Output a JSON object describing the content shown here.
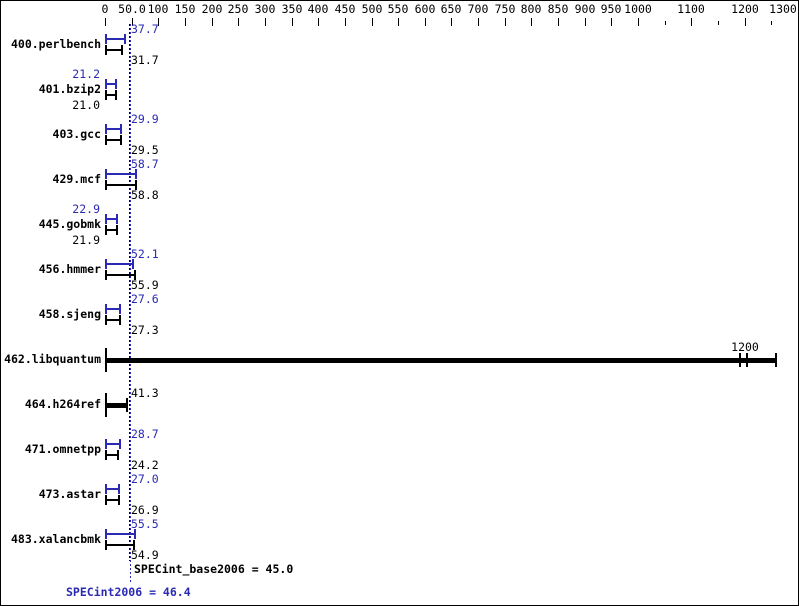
{
  "window": {
    "background": "#ffffff",
    "border_color": "#000000"
  },
  "chart_data": {
    "type": "bar",
    "orientation": "horizontal",
    "title": "",
    "xlabel": "",
    "ylabel": "",
    "grid": false,
    "series": [
      {
        "name": "peak (SPECint2006)",
        "color": "#2a2ab4"
      },
      {
        "name": "base (SPECint_base2006)",
        "color": "#000000"
      }
    ],
    "value_axis": {
      "position": "top",
      "min": 0,
      "max": 1300,
      "ticks": [
        {
          "value": 0,
          "label": "0",
          "minor": false
        },
        {
          "value": 50,
          "label": "50.0",
          "minor": false
        },
        {
          "value": 100,
          "label": "100",
          "minor": false
        },
        {
          "value": 150,
          "label": "150",
          "minor": false
        },
        {
          "value": 200,
          "label": "200",
          "minor": false
        },
        {
          "value": 250,
          "label": "250",
          "minor": false
        },
        {
          "value": 300,
          "label": "300",
          "minor": false
        },
        {
          "value": 350,
          "label": "350",
          "minor": false
        },
        {
          "value": 400,
          "label": "400",
          "minor": false
        },
        {
          "value": 450,
          "label": "450",
          "minor": false
        },
        {
          "value": 500,
          "label": "500",
          "minor": false
        },
        {
          "value": 550,
          "label": "550",
          "minor": false
        },
        {
          "value": 600,
          "label": "600",
          "minor": false
        },
        {
          "value": 650,
          "label": "650",
          "minor": false
        },
        {
          "value": 700,
          "label": "700",
          "minor": false
        },
        {
          "value": 750,
          "label": "750",
          "minor": false
        },
        {
          "value": 800,
          "label": "800",
          "minor": false
        },
        {
          "value": 850,
          "label": "850",
          "minor": false
        },
        {
          "value": 900,
          "label": "900",
          "minor": false
        },
        {
          "value": 950,
          "label": "950",
          "minor": false
        },
        {
          "value": 1000,
          "label": "1000",
          "minor": false
        },
        {
          "value": 1050,
          "label": null,
          "minor": true
        },
        {
          "value": 1100,
          "label": "1100",
          "minor": false
        },
        {
          "value": 1150,
          "label": null,
          "minor": true
        },
        {
          "value": 1200,
          "label": "1200",
          "minor": false
        },
        {
          "value": 1250,
          "label": null,
          "minor": true
        },
        {
          "value": 1300,
          "label": "1300",
          "minor": false
        }
      ]
    },
    "benchmarks": [
      {
        "name": "400.perlbench",
        "merged": false,
        "peak": 37.7,
        "base": 31.7,
        "peak_label": "37.7",
        "base_label": "31.7",
        "label_side": "right"
      },
      {
        "name": "401.bzip2",
        "merged": false,
        "peak": 21.2,
        "base": 21.0,
        "peak_label": "21.2",
        "base_label": "21.0",
        "label_side": "left"
      },
      {
        "name": "403.gcc",
        "merged": false,
        "peak": 29.9,
        "base": 29.5,
        "peak_label": "29.9",
        "base_label": "29.5",
        "label_side": "right"
      },
      {
        "name": "429.mcf",
        "merged": false,
        "peak": 58.7,
        "base": 58.8,
        "peak_label": "58.7",
        "base_label": "58.8",
        "label_side": "right"
      },
      {
        "name": "445.gobmk",
        "merged": false,
        "peak": 22.9,
        "base": 21.9,
        "peak_label": "22.9",
        "base_label": "21.9",
        "label_side": "left"
      },
      {
        "name": "456.hmmer",
        "merged": false,
        "peak": 52.1,
        "base": 55.9,
        "peak_label": "52.1",
        "base_label": "55.9",
        "label_side": "right"
      },
      {
        "name": "458.sjeng",
        "merged": false,
        "peak": 27.6,
        "base": 27.3,
        "peak_label": "27.6",
        "base_label": "27.3",
        "label_side": "right"
      },
      {
        "name": "462.libquantum",
        "merged": true,
        "peak": 1200,
        "base": 1200,
        "merged_label": "1200",
        "bar_end": 1258,
        "run_ticks": [
          1190,
          1202
        ],
        "label_over_value": 1200
      },
      {
        "name": "464.h264ref",
        "merged": true,
        "peak": 41.3,
        "base": 41.3,
        "merged_label": "41.3",
        "bar_end": 41.3,
        "run_ticks": [],
        "label_over_value": null
      },
      {
        "name": "471.omnetpp",
        "merged": false,
        "peak": 28.7,
        "base": 24.2,
        "peak_label": "28.7",
        "base_label": "24.2",
        "label_side": "right"
      },
      {
        "name": "473.astar",
        "merged": false,
        "peak": 27.0,
        "base": 26.9,
        "peak_label": "27.0",
        "base_label": "26.9",
        "label_side": "right"
      },
      {
        "name": "483.xalancbmk",
        "merged": false,
        "peak": 55.5,
        "base": 54.9,
        "peak_label": "55.5",
        "base_label": "54.9",
        "label_side": "right"
      }
    ],
    "reference_lines": [
      {
        "metric": "base",
        "value": 45.0,
        "color": "#000000",
        "style": "dotted"
      },
      {
        "metric": "peak",
        "value": 46.4,
        "color": "#2a2ab4",
        "style": "dotted"
      }
    ],
    "summary": {
      "base": {
        "label": "SPECint_base2006 = 45.0",
        "value": 45.0
      },
      "peak": {
        "label": "SPECint2006 = 46.4",
        "value": 46.4
      }
    }
  }
}
